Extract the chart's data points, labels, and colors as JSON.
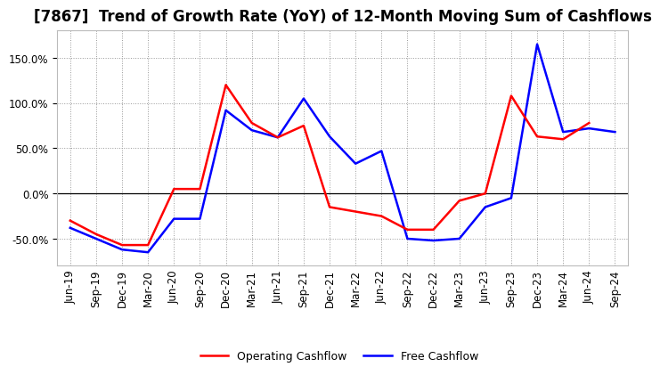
{
  "title": "[7867]  Trend of Growth Rate (YoY) of 12-Month Moving Sum of Cashflows",
  "x_labels": [
    "Jun-19",
    "Sep-19",
    "Dec-19",
    "Mar-20",
    "Jun-20",
    "Sep-20",
    "Dec-20",
    "Mar-21",
    "Jun-21",
    "Sep-21",
    "Dec-21",
    "Mar-22",
    "Jun-22",
    "Sep-22",
    "Dec-22",
    "Mar-23",
    "Jun-23",
    "Sep-23",
    "Dec-23",
    "Mar-24",
    "Jun-24",
    "Sep-24"
  ],
  "operating_cashflow": [
    -30,
    -45,
    -57,
    -57,
    5,
    5,
    120,
    78,
    62,
    75,
    -15,
    -20,
    -25,
    -40,
    -40,
    -8,
    0,
    108,
    63,
    60,
    78,
    null
  ],
  "free_cashflow": [
    -38,
    -50,
    -62,
    -65,
    -28,
    -28,
    92,
    70,
    62,
    105,
    63,
    33,
    47,
    -50,
    -52,
    -50,
    -15,
    -5,
    165,
    68,
    72,
    68
  ],
  "operating_color": "#ff0000",
  "free_color": "#0000ff",
  "ylim": [
    -80,
    180
  ],
  "yticks": [
    -50.0,
    0.0,
    50.0,
    100.0,
    150.0
  ],
  "background_color": "#ffffff",
  "plot_bg_color": "#ffffff",
  "grid_color": "#999999",
  "title_fontsize": 12,
  "tick_fontsize": 8.5,
  "legend_fontsize": 9
}
